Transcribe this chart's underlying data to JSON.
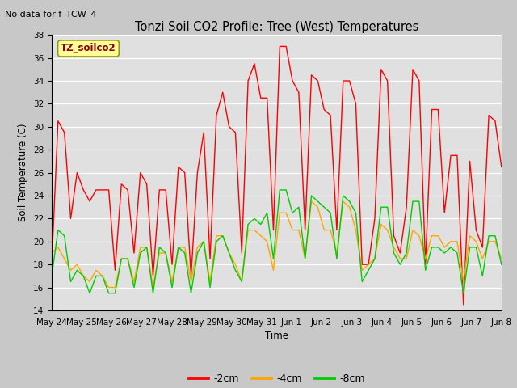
{
  "title": "Tonzi Soil CO2 Profile: Tree (West) Temperatures",
  "subtitle": "No data for f_TCW_4",
  "xlabel": "Time",
  "ylabel": "Soil Temperature (C)",
  "ylim": [
    14,
    38
  ],
  "yticks": [
    14,
    16,
    18,
    20,
    22,
    24,
    26,
    28,
    30,
    32,
    34,
    36,
    38
  ],
  "fig_bg_color": "#c8c8c8",
  "plot_bg_color": "#e0e0e0",
  "series_colors": [
    "#ff0000",
    "#ffa500",
    "#00cc00"
  ],
  "series_labels": [
    "-2cm",
    "-4cm",
    "-8cm"
  ],
  "legend_label": "TZ_soilco2",
  "legend_label_color": "#8b0000",
  "legend_box_facecolor": "#ffff99",
  "legend_box_edgecolor": "#999900",
  "x_tick_labels": [
    "May 24",
    "May 25",
    "May 26",
    "May 27",
    "May 28",
    "May 29",
    "May 30",
    "May 31",
    "Jun 1",
    "Jun 2",
    "Jun 3",
    "Jun 4",
    "Jun 5",
    "Jun 6",
    "Jun 7",
    "Jun 8"
  ],
  "t_2cm": [
    18.0,
    30.5,
    29.5,
    22.0,
    26.0,
    24.5,
    23.5,
    24.5,
    24.5,
    24.5,
    17.5,
    25.0,
    24.5,
    19.0,
    26.0,
    25.0,
    17.0,
    24.5,
    24.5,
    18.0,
    26.5,
    26.0,
    17.0,
    26.0,
    29.5,
    18.5,
    31.0,
    33.0,
    30.0,
    29.5,
    19.0,
    34.0,
    35.5,
    32.5,
    32.5,
    21.0,
    37.0,
    37.0,
    34.0,
    33.0,
    21.0,
    34.5,
    34.0,
    31.5,
    31.0,
    21.0,
    34.0,
    34.0,
    32.0,
    18.0,
    18.0,
    22.0,
    35.0,
    34.0,
    20.5,
    19.0,
    23.0,
    35.0,
    34.0,
    18.0,
    31.5,
    31.5,
    22.5,
    27.5,
    27.5,
    14.5,
    27.0,
    21.0,
    19.5,
    31.0,
    30.5,
    26.5
  ],
  "t_4cm": [
    19.0,
    19.5,
    18.5,
    17.5,
    18.0,
    17.0,
    16.5,
    17.5,
    17.0,
    16.0,
    16.0,
    18.5,
    18.5,
    16.5,
    19.5,
    19.5,
    16.0,
    19.0,
    19.0,
    16.5,
    19.5,
    19.5,
    16.5,
    19.5,
    20.0,
    16.5,
    20.5,
    20.5,
    19.0,
    18.0,
    16.5,
    21.0,
    21.0,
    20.5,
    20.0,
    17.5,
    22.5,
    22.5,
    21.0,
    21.0,
    18.5,
    23.5,
    23.0,
    21.0,
    21.0,
    19.0,
    23.5,
    23.0,
    21.0,
    17.5,
    18.0,
    18.5,
    21.5,
    21.0,
    19.5,
    18.5,
    18.5,
    21.0,
    20.5,
    18.5,
    20.5,
    20.5,
    19.5,
    20.0,
    20.0,
    16.5,
    20.5,
    20.0,
    18.5,
    20.0,
    20.0,
    18.5
  ],
  "t_8cm": [
    17.0,
    21.0,
    20.5,
    16.5,
    17.5,
    17.0,
    15.5,
    17.0,
    17.0,
    15.5,
    15.5,
    18.5,
    18.5,
    16.0,
    19.0,
    19.5,
    15.5,
    19.5,
    19.0,
    16.0,
    19.5,
    19.0,
    15.5,
    19.0,
    20.0,
    16.0,
    20.0,
    20.5,
    19.0,
    17.5,
    16.5,
    21.5,
    22.0,
    21.5,
    22.5,
    18.5,
    24.5,
    24.5,
    22.5,
    23.0,
    18.5,
    24.0,
    23.5,
    23.0,
    22.5,
    18.5,
    24.0,
    23.5,
    22.5,
    16.5,
    17.5,
    18.5,
    23.0,
    23.0,
    19.0,
    18.0,
    19.0,
    23.5,
    23.5,
    17.5,
    19.5,
    19.5,
    19.0,
    19.5,
    19.0,
    15.5,
    19.5,
    19.5,
    17.0,
    20.5,
    20.5,
    18.0
  ]
}
